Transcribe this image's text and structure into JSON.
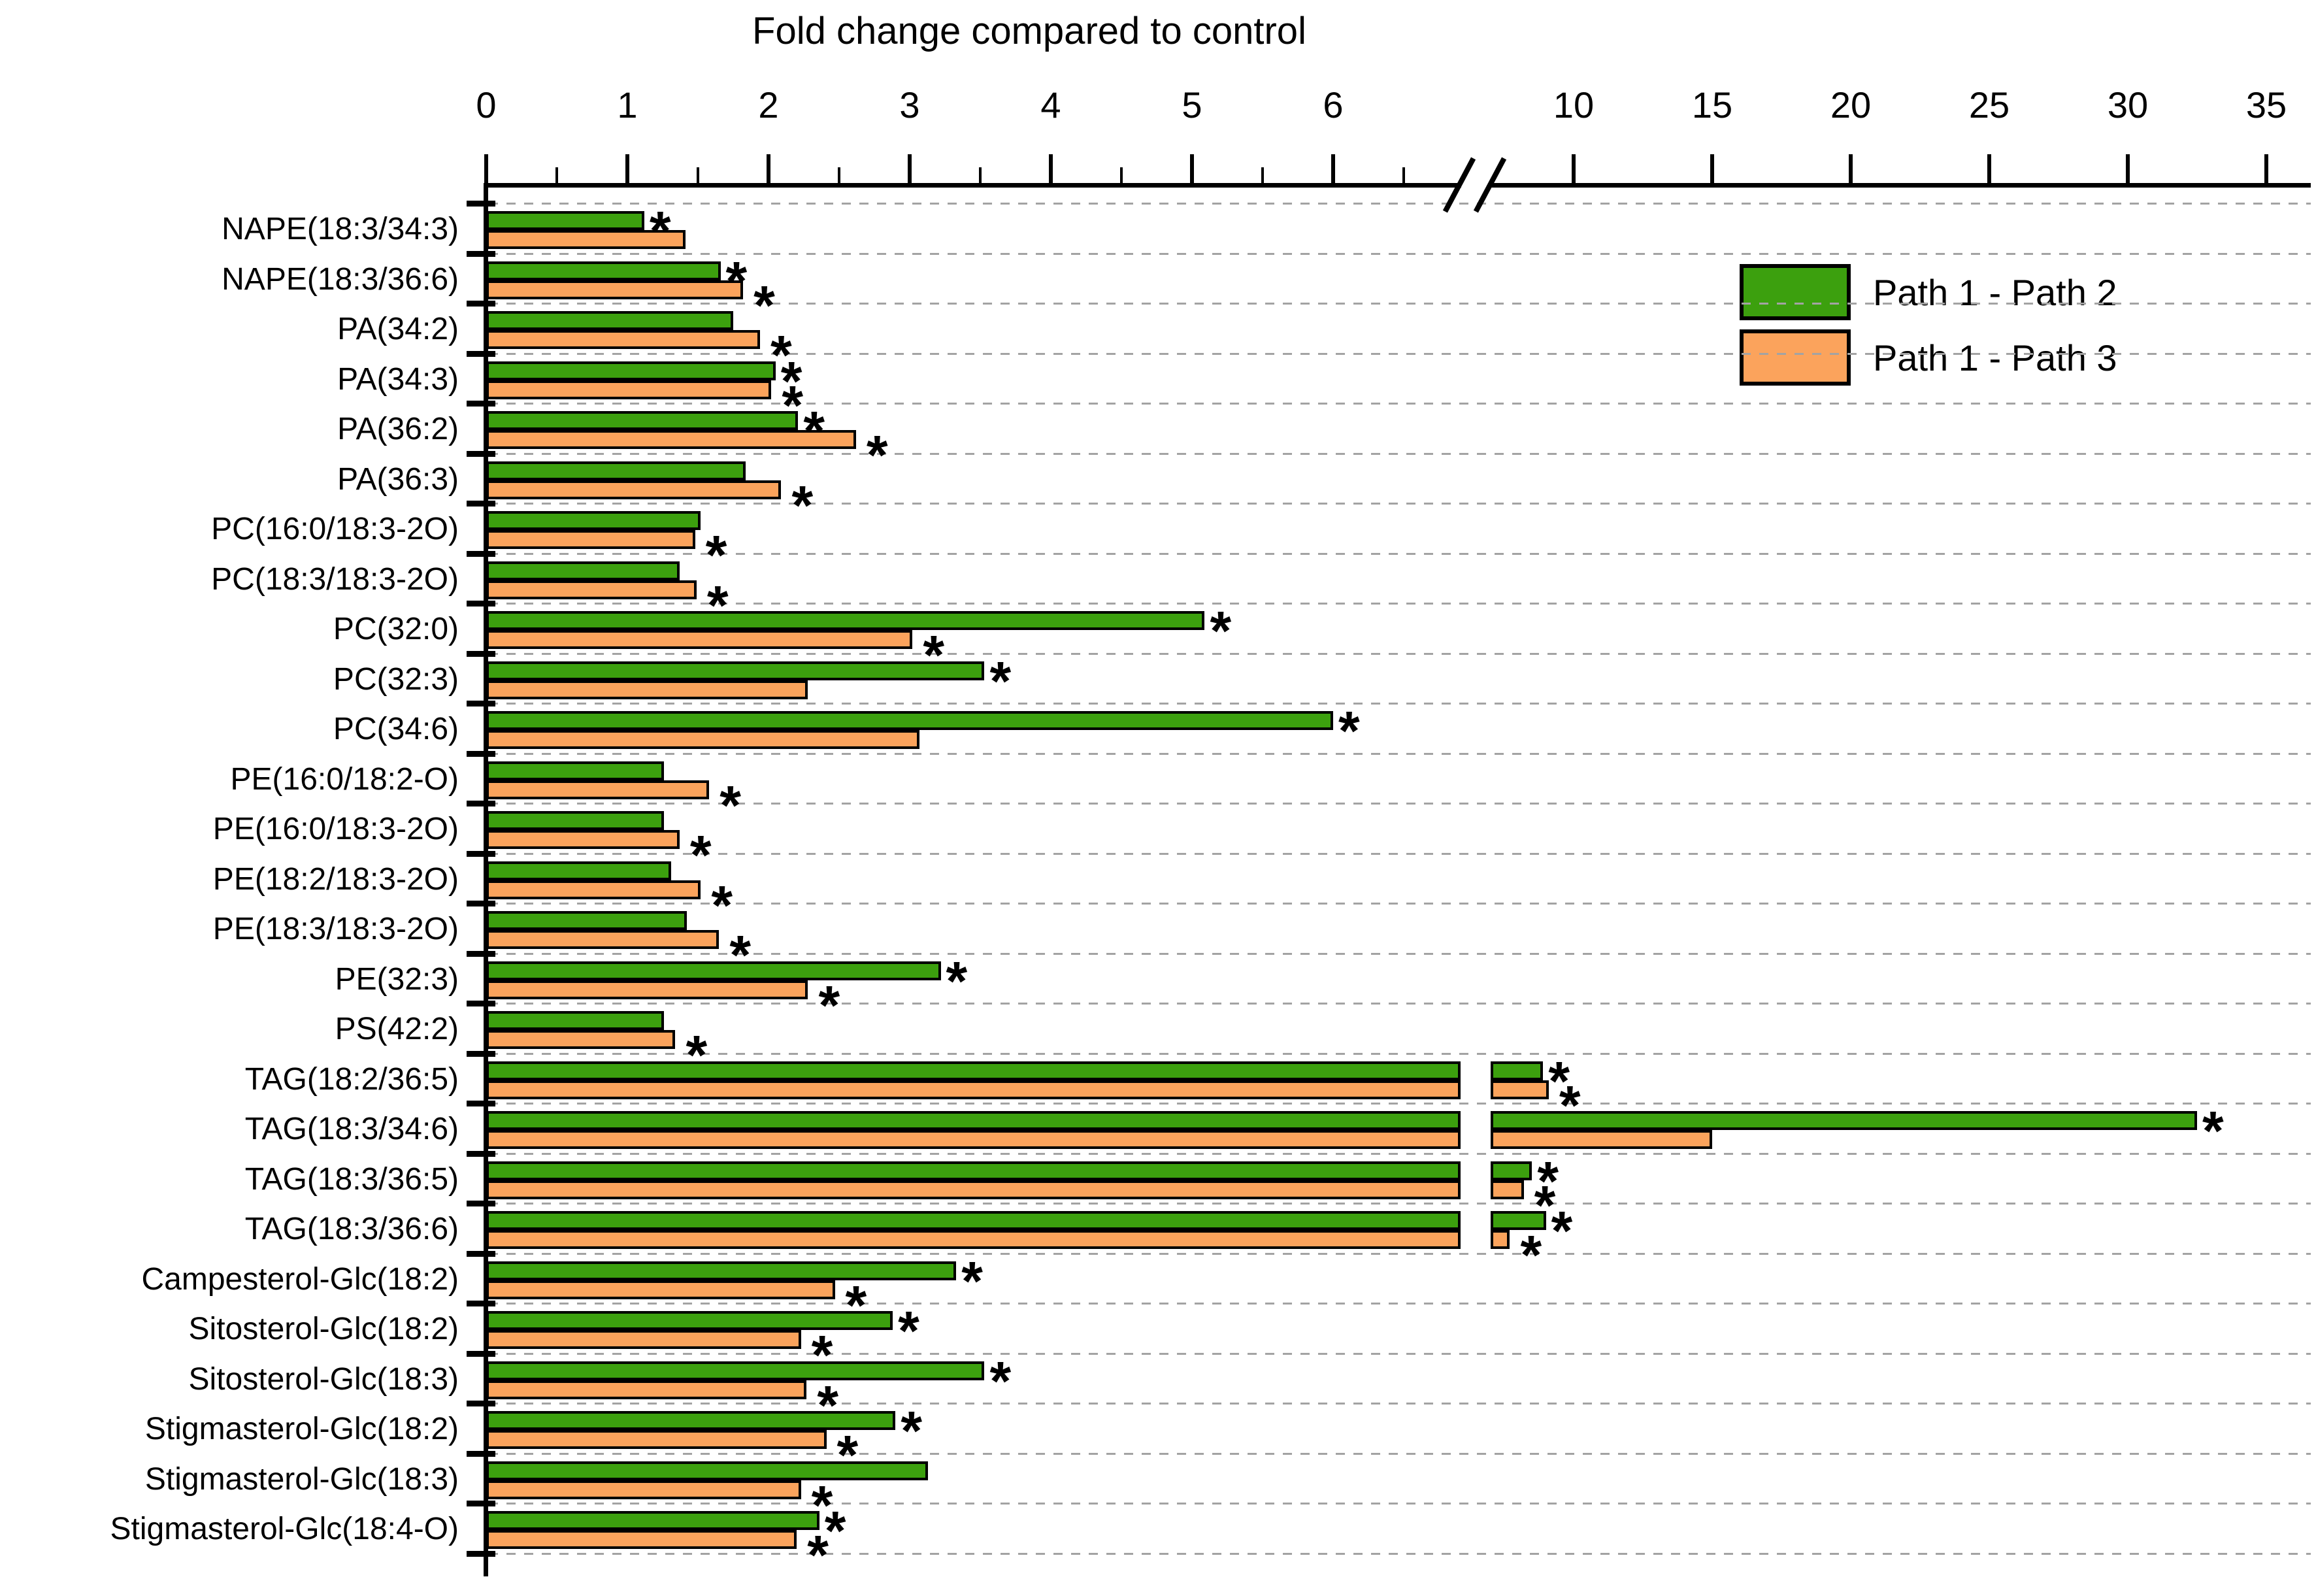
{
  "chart_data": {
    "type": "bar",
    "orientation": "horizontal",
    "title": "Fold change compared to control",
    "sig_marker": "*",
    "colors": {
      "series1": "#3CA00E",
      "series2": "#FBA35C",
      "bar_border": "#000000",
      "gridline": "#A3A3A3",
      "axis": "#000000"
    },
    "legend": [
      {
        "label": "Path 1 - Path 2",
        "color": "#3CA00E"
      },
      {
        "label": "Path 1 - Path 3",
        "color": "#FBA35C"
      }
    ],
    "axis": {
      "xlabel_position": "top",
      "grid": "dashed-horizontal",
      "xlim": [
        0,
        35
      ],
      "major_ticks_left_segment": [
        0,
        1,
        2,
        3,
        4,
        5,
        6
      ],
      "minor_tick_step_left_segment": 0.5,
      "minor_ticks_left_segment_last": 6.5,
      "axis_break_between": [
        6.9,
        9.4
      ],
      "major_ticks_right_segment": [
        10,
        15,
        20,
        25,
        30,
        35
      ]
    },
    "categories": [
      "NAPE(18:3/34:3)",
      "NAPE(18:3/36:6)",
      "PA(34:2)",
      "PA(34:3)",
      "PA(36:2)",
      "PA(36:3)",
      "PC(16:0/18:3-2O)",
      "PC(18:3/18:3-2O)",
      "PC(32:0)",
      "PC(32:3)",
      "PC(34:6)",
      "PE(16:0/18:2-O)",
      "PE(16:0/18:3-2O)",
      "PE(18:2/18:3-2O)",
      "PE(18:3/18:3-2O)",
      "PE(32:3)",
      "PS(42:2)",
      "TAG(18:2/36:5)",
      "TAG(18:3/34:6)",
      "TAG(18:3/36:5)",
      "TAG(18:3/36:6)",
      "Campesterol-Glc(18:2)",
      "Sitosterol-Glc(18:2)",
      "Sitosterol-Glc(18:3)",
      "Stigmasterol-Glc(18:2)",
      "Stigmasterol-Glc(18:3)",
      "Stigmasterol-Glc(18:4-O)"
    ],
    "series": [
      {
        "name": "Path 1 - Path 2",
        "color": "#3CA00E",
        "values": [
          1.12,
          1.66,
          1.75,
          2.05,
          2.21,
          1.84,
          1.52,
          1.37,
          5.09,
          3.53,
          6.0,
          1.26,
          1.26,
          1.31,
          1.42,
          3.22,
          1.26,
          8.9,
          32.5,
          8.5,
          9.0,
          3.33,
          2.88,
          3.53,
          2.9,
          3.13,
          2.36
        ],
        "significant": [
          true,
          true,
          false,
          true,
          true,
          false,
          false,
          false,
          true,
          true,
          true,
          false,
          false,
          false,
          false,
          true,
          false,
          true,
          true,
          true,
          true,
          true,
          true,
          true,
          true,
          false,
          true
        ]
      },
      {
        "name": "Path 1 - Path 3",
        "color": "#FBA35C",
        "values": [
          1.41,
          1.82,
          1.94,
          2.02,
          2.62,
          2.09,
          1.48,
          1.49,
          3.02,
          2.28,
          3.07,
          1.58,
          1.37,
          1.52,
          1.65,
          2.28,
          1.34,
          9.1,
          15.0,
          8.2,
          7.7,
          2.47,
          2.23,
          2.27,
          2.41,
          2.23,
          2.2
        ],
        "significant": [
          false,
          true,
          true,
          true,
          true,
          true,
          true,
          true,
          true,
          false,
          false,
          true,
          true,
          true,
          true,
          true,
          true,
          true,
          false,
          true,
          true,
          true,
          true,
          true,
          true,
          true,
          true
        ]
      }
    ]
  }
}
